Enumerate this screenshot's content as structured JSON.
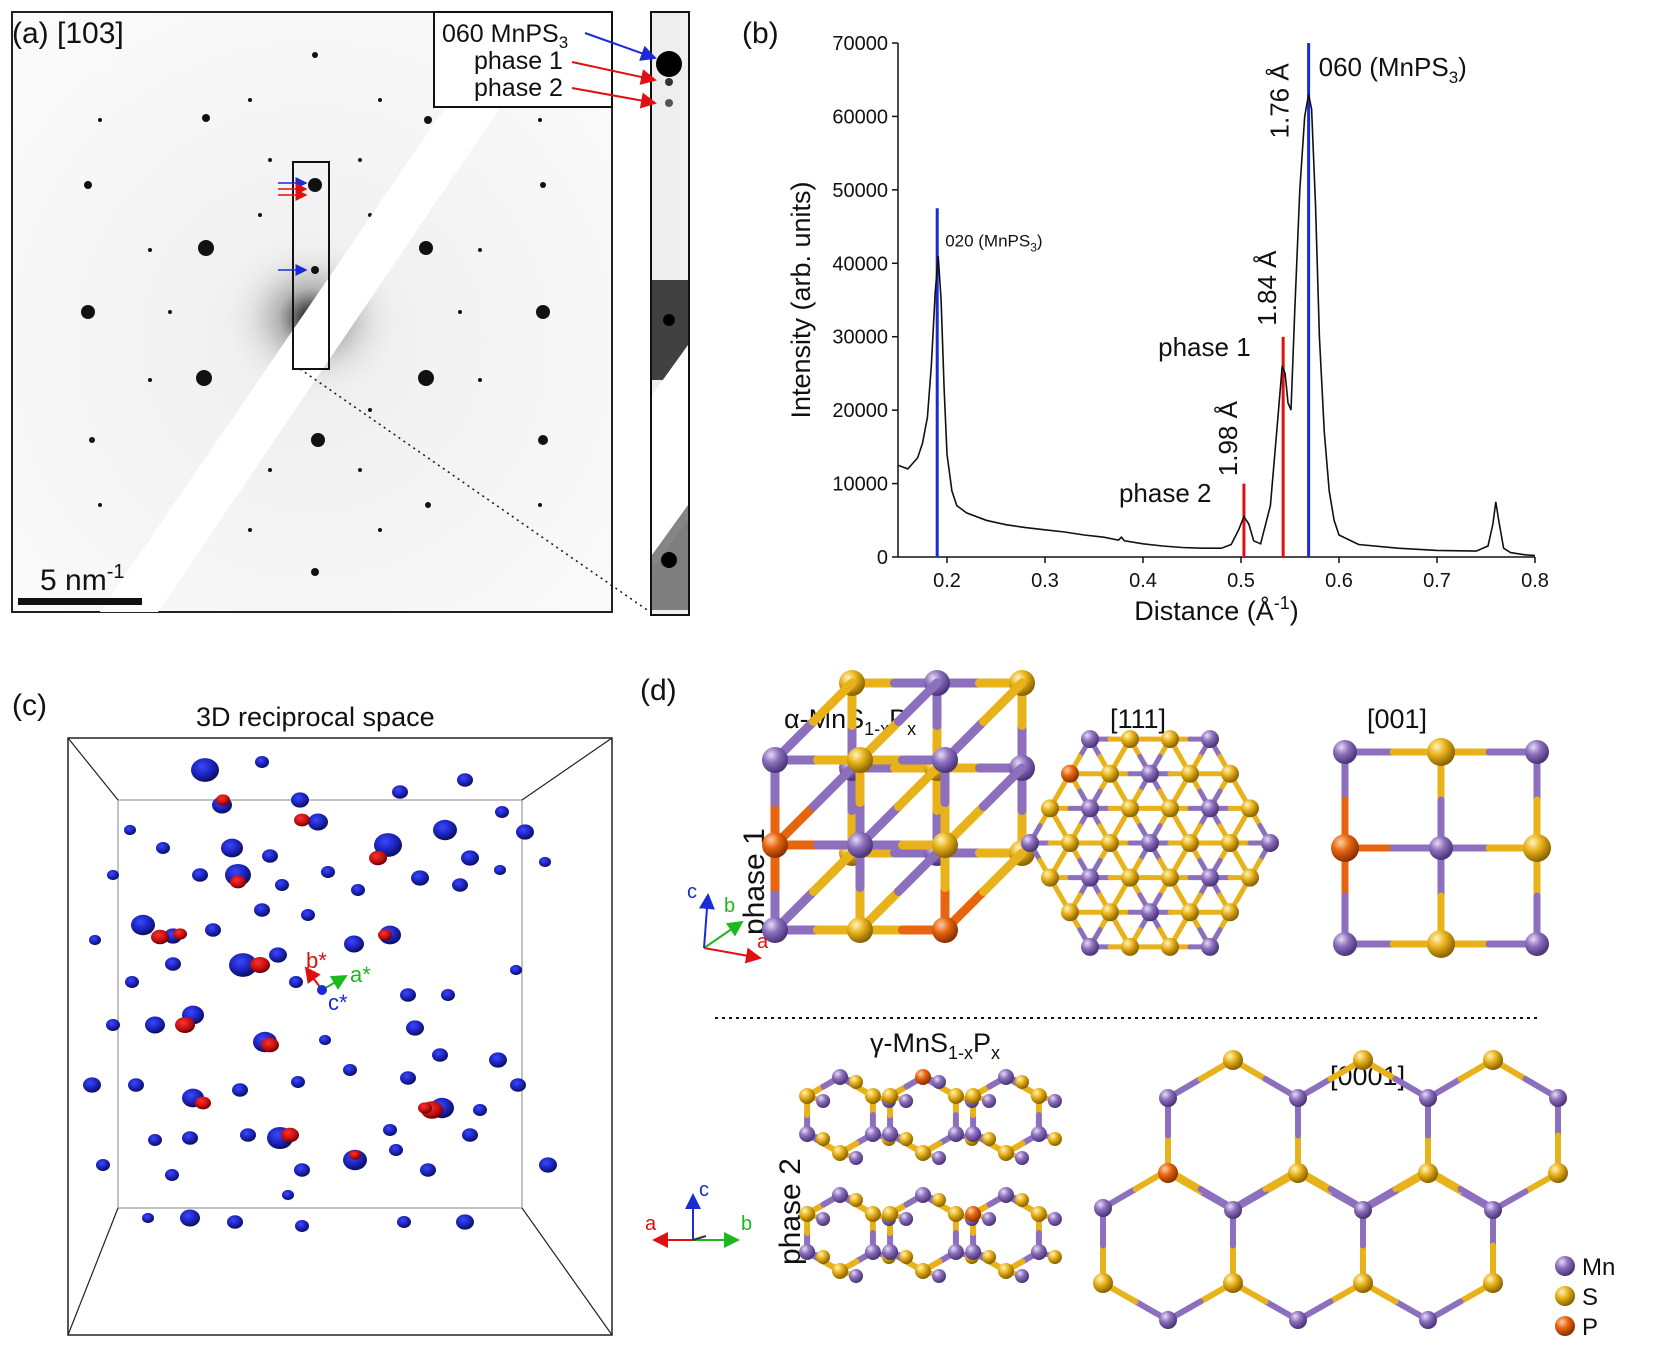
{
  "panel_a": {
    "label": "(a) [103]",
    "legend": {
      "l1": "060 MnPS",
      "l1_sub": "3",
      "l2": "phase 1",
      "l3": "phase 2"
    },
    "scalebar": {
      "text": "5 nm",
      "sup": "-1"
    }
  },
  "panel_b": {
    "label": "(b)"
  },
  "panel_c": {
    "label": "(c)",
    "title": "3D reciprocal space",
    "axes": {
      "a": "a*",
      "b": "b*",
      "c": "c*"
    }
  },
  "panel_d": {
    "label": "(d)",
    "alpha": {
      "pre": "α-MnS",
      "sub1": "1-x",
      "mid": "P",
      "sub2": "x"
    },
    "gamma": {
      "pre": "γ-MnS",
      "sub1": "1-x",
      "mid": "P",
      "sub2": "x"
    },
    "view111": "[111]",
    "view001": "[001]",
    "view0001": "[0001]",
    "phase1": "phase 1",
    "phase2": "phase 2",
    "axes1": {
      "a": "a",
      "b": "b",
      "c": "c"
    },
    "axes2": {
      "a": "a",
      "b": "b",
      "c": "c"
    },
    "legend": [
      "Mn",
      "S",
      "P"
    ]
  },
  "colors": {
    "mn": "#8c6fbd",
    "s": "#e8b21a",
    "p": "#e8650f",
    "blue": "#1a2bd6",
    "red": "#e01010",
    "green": "#1db81d"
  },
  "chart_data": {
    "type": "line",
    "xlabel": "Distance (Å",
    "xlabel_sup": "-1",
    "xlabel_end": ")",
    "ylabel": "Intensity (arb. units)",
    "xlim": [
      0.15,
      0.8
    ],
    "ylim": [
      0,
      70000
    ],
    "xticks": [
      "0.2",
      "0.3",
      "0.4",
      "0.5",
      "0.6",
      "0.7",
      "0.8"
    ],
    "yticks": [
      "0",
      "10000",
      "20000",
      "30000",
      "40000",
      "50000",
      "60000",
      "70000"
    ],
    "series": [
      {
        "x": [
          0.15,
          0.16,
          0.17,
          0.175,
          0.18,
          0.184,
          0.188,
          0.191,
          0.194,
          0.197,
          0.2,
          0.205,
          0.21,
          0.22,
          0.24,
          0.26,
          0.28,
          0.3,
          0.32,
          0.34,
          0.36,
          0.375,
          0.378,
          0.381,
          0.4,
          0.42,
          0.44,
          0.46,
          0.48,
          0.49,
          0.498,
          0.503,
          0.508,
          0.513,
          0.52,
          0.53,
          0.537,
          0.542,
          0.545,
          0.548,
          0.551,
          0.555,
          0.56,
          0.565,
          0.569,
          0.572,
          0.576,
          0.58,
          0.585,
          0.59,
          0.595,
          0.6,
          0.62,
          0.66,
          0.7,
          0.74,
          0.752,
          0.757,
          0.76,
          0.763,
          0.768,
          0.775,
          0.79,
          0.8
        ],
        "y": [
          12500,
          12000,
          13500,
          15500,
          19000,
          26000,
          36000,
          41000,
          35000,
          23000,
          14000,
          9000,
          7000,
          6000,
          5000,
          4400,
          4000,
          3700,
          3400,
          3000,
          2700,
          2300,
          2700,
          2200,
          1800,
          1500,
          1300,
          1200,
          1200,
          1700,
          3800,
          5500,
          4500,
          2200,
          1800,
          7000,
          18000,
          26000,
          25000,
          21000,
          20000,
          34000,
          50000,
          60000,
          63000,
          61000,
          48000,
          30000,
          17000,
          9000,
          5000,
          3000,
          1700,
          1200,
          900,
          800,
          1500,
          4500,
          7500,
          5000,
          1200,
          600,
          300,
          200
        ]
      }
    ],
    "markers": [
      {
        "x": 0.19,
        "y": 47500,
        "color": "#1a2bd6",
        "label": "020 (MnPS",
        "sub": "3",
        "end": ")"
      },
      {
        "x": 0.503,
        "y": 10000,
        "color": "#e01010",
        "label": "1.98 Å",
        "name": "phase 2"
      },
      {
        "x": 0.543,
        "y": 30000,
        "color": "#e01010",
        "label": "1.84 Å",
        "name": "phase 1"
      },
      {
        "x": 0.569,
        "y": 70000,
        "color": "#1a2bd6",
        "label": "1.76 Å",
        "name": "060 (MnPS",
        "sub": "3",
        "end": ")"
      }
    ]
  }
}
